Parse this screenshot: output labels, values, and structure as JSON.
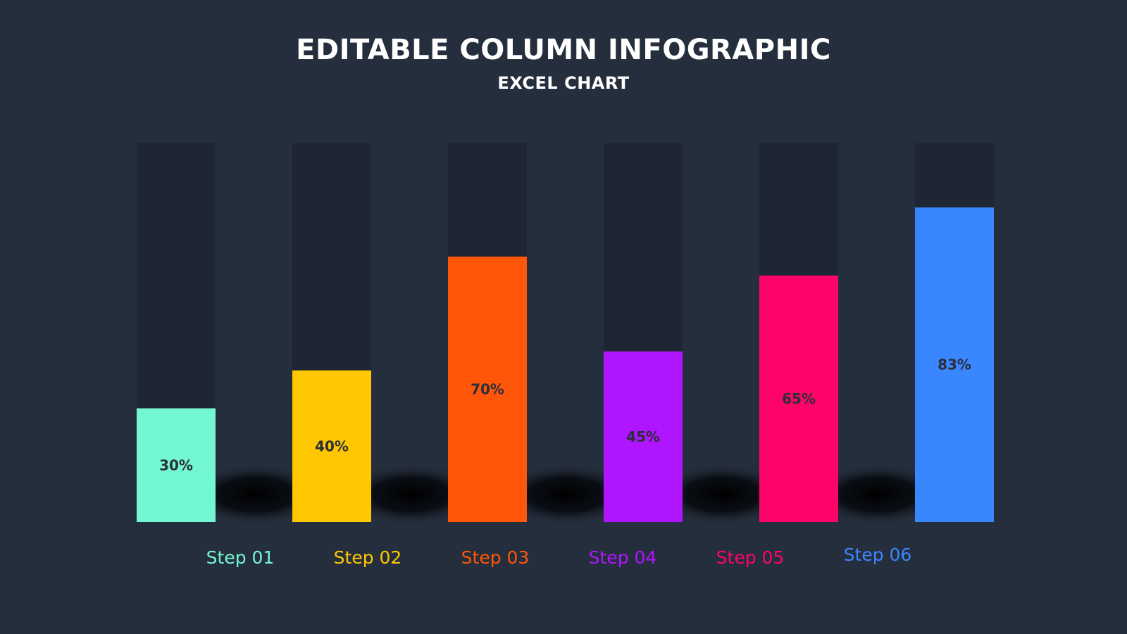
{
  "page": {
    "title": "EDITABLE COLUMN INFOGRAPHIC",
    "subtitle": "EXCEL CHART"
  },
  "colors": {
    "background": "#252e3c",
    "track": "#1f2633",
    "shadow": "#000000",
    "value_label": "#2a2f3a"
  },
  "chart_data": {
    "type": "bar",
    "categories": [
      "Step 01",
      "Step 02",
      "Step 03",
      "Step 04",
      "Step 05",
      "Step 06"
    ],
    "values": [
      30,
      40,
      70,
      45,
      65,
      83
    ],
    "value_labels": [
      "30%",
      "40%",
      "70%",
      "45%",
      "65%",
      "83%"
    ],
    "colors": [
      "#73f7d2",
      "#ffc700",
      "#ff5609",
      "#af15ff",
      "#ff0468",
      "#3a86ff"
    ],
    "title": "EDITABLE COLUMN INFOGRAPHIC",
    "subtitle": "EXCEL CHART",
    "ylim": [
      0,
      100
    ],
    "grid": false,
    "legend": "none"
  }
}
